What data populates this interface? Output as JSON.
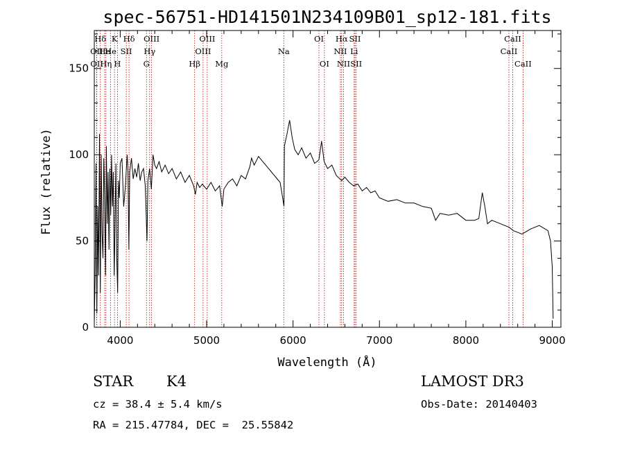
{
  "chart_data": {
    "type": "line",
    "title": "spec-56751-HD141501N234109B01_sp12-181.fits",
    "xlabel": "Wavelength (Å)",
    "ylabel": "Flux (relative)",
    "xlim": [
      3700,
      9100
    ],
    "ylim": [
      0,
      172
    ],
    "xticks": [
      4000,
      5000,
      6000,
      7000,
      8000,
      9000
    ],
    "yticks": [
      0,
      50,
      100,
      150
    ],
    "series": [
      {
        "name": "spectrum",
        "points": [
          [
            3700,
            3
          ],
          [
            3710,
            28
          ],
          [
            3720,
            95
          ],
          [
            3730,
            8
          ],
          [
            3740,
            70
          ],
          [
            3750,
            30
          ],
          [
            3760,
            112
          ],
          [
            3770,
            20
          ],
          [
            3780,
            100
          ],
          [
            3790,
            55
          ],
          [
            3800,
            40
          ],
          [
            3810,
            98
          ],
          [
            3820,
            75
          ],
          [
            3830,
            30
          ],
          [
            3840,
            105
          ],
          [
            3850,
            60
          ],
          [
            3860,
            90
          ],
          [
            3870,
            45
          ],
          [
            3880,
            92
          ],
          [
            3890,
            65
          ],
          [
            3900,
            100
          ],
          [
            3910,
            70
          ],
          [
            3920,
            90
          ],
          [
            3930,
            30
          ],
          [
            3940,
            60
          ],
          [
            3950,
            95
          ],
          [
            3960,
            40
          ],
          [
            3970,
            20
          ],
          [
            3980,
            85
          ],
          [
            3990,
            75
          ],
          [
            4000,
            95
          ],
          [
            4020,
            98
          ],
          [
            4040,
            70
          ],
          [
            4060,
            82
          ],
          [
            4080,
            100
          ],
          [
            4090,
            90
          ],
          [
            4100,
            45
          ],
          [
            4110,
            90
          ],
          [
            4130,
            98
          ],
          [
            4150,
            86
          ],
          [
            4170,
            92
          ],
          [
            4190,
            87
          ],
          [
            4210,
            95
          ],
          [
            4230,
            85
          ],
          [
            4250,
            90
          ],
          [
            4270,
            92
          ],
          [
            4290,
            82
          ],
          [
            4300,
            66
          ],
          [
            4310,
            50
          ],
          [
            4320,
            85
          ],
          [
            4340,
            92
          ],
          [
            4360,
            80
          ],
          [
            4380,
            100
          ],
          [
            4400,
            94
          ],
          [
            4420,
            92
          ],
          [
            4450,
            96
          ],
          [
            4480,
            90
          ],
          [
            4520,
            94
          ],
          [
            4560,
            89
          ],
          [
            4600,
            92
          ],
          [
            4650,
            86
          ],
          [
            4700,
            90
          ],
          [
            4750,
            84
          ],
          [
            4800,
            88
          ],
          [
            4850,
            82
          ],
          [
            4870,
            77
          ],
          [
            4890,
            84
          ],
          [
            4920,
            81
          ],
          [
            4950,
            83
          ],
          [
            5000,
            80
          ],
          [
            5050,
            84
          ],
          [
            5100,
            79
          ],
          [
            5150,
            82
          ],
          [
            5180,
            70
          ],
          [
            5200,
            80
          ],
          [
            5250,
            84
          ],
          [
            5300,
            86
          ],
          [
            5350,
            82
          ],
          [
            5400,
            88
          ],
          [
            5450,
            86
          ],
          [
            5500,
            93
          ],
          [
            5520,
            98
          ],
          [
            5550,
            94
          ],
          [
            5600,
            99
          ],
          [
            5650,
            96
          ],
          [
            5700,
            93
          ],
          [
            5750,
            90
          ],
          [
            5800,
            87
          ],
          [
            5850,
            84
          ],
          [
            5880,
            75
          ],
          [
            5895,
            70
          ],
          [
            5900,
            105
          ],
          [
            5930,
            112
          ],
          [
            5960,
            120
          ],
          [
            5990,
            110
          ],
          [
            6020,
            103
          ],
          [
            6060,
            100
          ],
          [
            6100,
            104
          ],
          [
            6150,
            98
          ],
          [
            6200,
            101
          ],
          [
            6250,
            95
          ],
          [
            6300,
            97
          ],
          [
            6330,
            108
          ],
          [
            6360,
            96
          ],
          [
            6400,
            92
          ],
          [
            6450,
            94
          ],
          [
            6500,
            88
          ],
          [
            6563,
            85
          ],
          [
            6600,
            87
          ],
          [
            6650,
            84
          ],
          [
            6700,
            82
          ],
          [
            6750,
            83
          ],
          [
            6800,
            79
          ],
          [
            6850,
            81
          ],
          [
            6900,
            78
          ],
          [
            6950,
            79
          ],
          [
            7000,
            75
          ],
          [
            7100,
            73
          ],
          [
            7200,
            74
          ],
          [
            7300,
            72
          ],
          [
            7400,
            72
          ],
          [
            7500,
            70
          ],
          [
            7600,
            69
          ],
          [
            7650,
            62
          ],
          [
            7700,
            66
          ],
          [
            7800,
            65
          ],
          [
            7900,
            66
          ],
          [
            8000,
            62
          ],
          [
            8100,
            62
          ],
          [
            8150,
            63
          ],
          [
            8190,
            78
          ],
          [
            8220,
            70
          ],
          [
            8250,
            60
          ],
          [
            8300,
            62
          ],
          [
            8400,
            60
          ],
          [
            8500,
            58
          ],
          [
            8550,
            56
          ],
          [
            8650,
            54
          ],
          [
            8750,
            57
          ],
          [
            8850,
            59
          ],
          [
            8950,
            56
          ],
          [
            8980,
            50
          ],
          [
            9000,
            35
          ],
          [
            9010,
            5
          ]
        ]
      }
    ],
    "line_markers": [
      {
        "label": "Hδ",
        "x": 3770,
        "row": 0
      },
      {
        "label": "OII",
        "x": 3727,
        "row": 1
      },
      {
        "label": "OII",
        "x": 3729,
        "row": 2
      },
      {
        "label": "He",
        "x": 3820,
        "row": 1
      },
      {
        "label": "Hη",
        "x": 3835,
        "row": 2
      },
      {
        "label": "K",
        "x": 3934,
        "row": 0
      },
      {
        "label": "He",
        "x": 3889,
        "row": 1
      },
      {
        "label": "H",
        "x": 3968,
        "row": 2
      },
      {
        "label": "SII",
        "x": 4070,
        "row": 1
      },
      {
        "label": "Hδ",
        "x": 4102,
        "row": 0
      },
      {
        "label": "OIII",
        "x": 4363,
        "row": 0
      },
      {
        "label": "Hγ",
        "x": 4340,
        "row": 1
      },
      {
        "label": "G",
        "x": 4304,
        "row": 2
      },
      {
        "label": "Hβ",
        "x": 4861,
        "row": 2
      },
      {
        "label": "OIII",
        "x": 5007,
        "row": 0
      },
      {
        "label": "OIII",
        "x": 4959,
        "row": 1
      },
      {
        "label": "Mg",
        "x": 5175,
        "row": 2
      },
      {
        "label": "Na",
        "x": 5893,
        "row": 1
      },
      {
        "label": "OI",
        "x": 6300,
        "row": 0
      },
      {
        "label": "OI",
        "x": 6363,
        "row": 2
      },
      {
        "label": "Hα",
        "x": 6563,
        "row": 0
      },
      {
        "label": "NII",
        "x": 6548,
        "row": 1
      },
      {
        "label": "NII",
        "x": 6584,
        "row": 2
      },
      {
        "label": "SII",
        "x": 6717,
        "row": 0
      },
      {
        "label": "Li",
        "x": 6707,
        "row": 1
      },
      {
        "label": "SII",
        "x": 6731,
        "row": 2
      },
      {
        "label": "CaII",
        "x": 8542,
        "row": 0
      },
      {
        "label": "CaII",
        "x": 8498,
        "row": 1
      },
      {
        "label": "CaII",
        "x": 8662,
        "row": 2
      }
    ]
  },
  "info": {
    "class": "STAR",
    "subclass": "K4",
    "survey": "LAMOST DR3",
    "cz": "cz = 38.4 ± 5.4 km/s",
    "obs_date": "Obs-Date: 20140403",
    "coords": "RA = 215.47784, DEC =  25.55842"
  },
  "colors": {
    "axis": "#000000",
    "spectrum": "#000000",
    "marker": "#c00000"
  }
}
